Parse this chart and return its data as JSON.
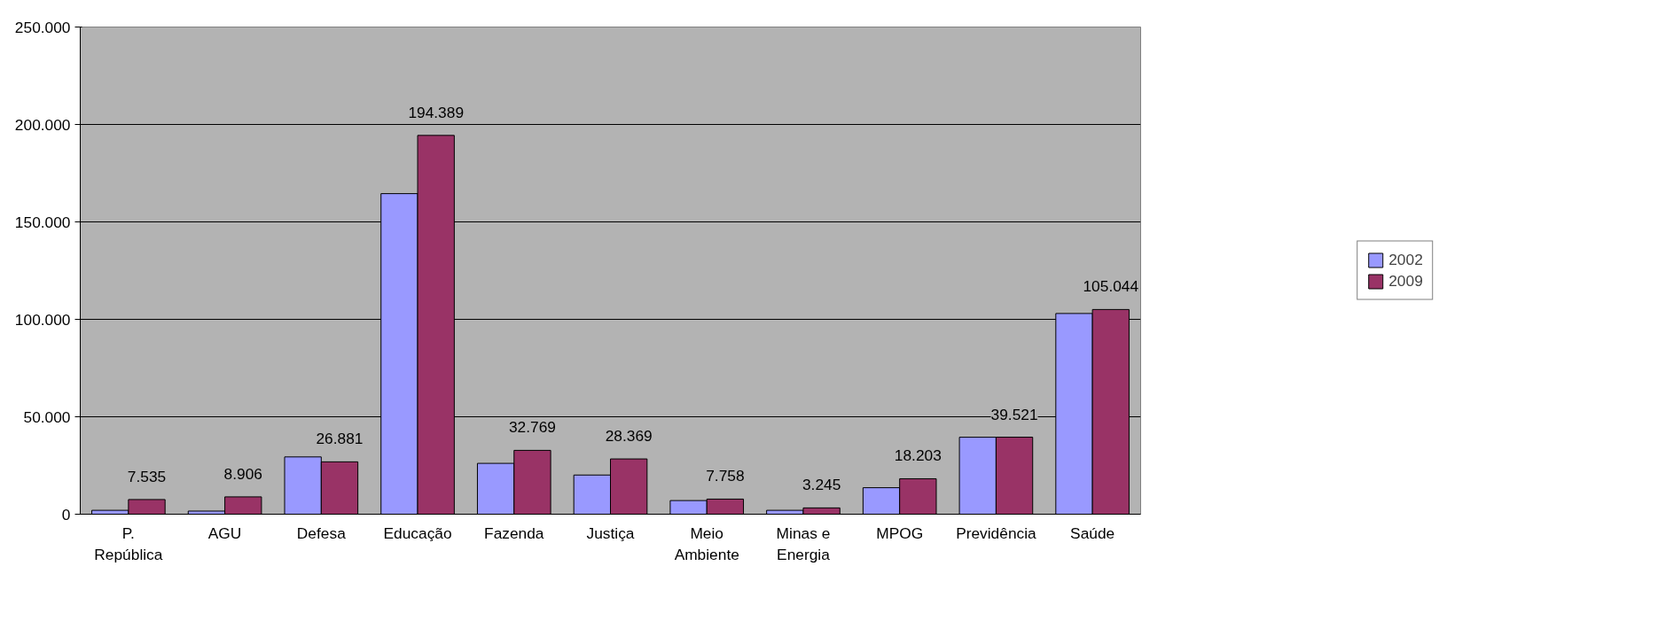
{
  "chart_data": {
    "type": "bar",
    "categories": [
      "P. República",
      "AGU",
      "Defesa",
      "Educação",
      "Fazenda",
      "Justiça",
      "Meio Ambiente",
      "Minas e Energia",
      "MPOG",
      "Previdência",
      "Saúde"
    ],
    "series": [
      {
        "name": "2002",
        "color": "#9999ff",
        "values": [
          2000,
          1600,
          29400,
          164500,
          26100,
          20100,
          7000,
          2000,
          13600,
          39500,
          103000
        ]
      },
      {
        "name": "2009",
        "color": "#993366",
        "values": [
          7535,
          8906,
          26881,
          194389,
          32769,
          28369,
          7758,
          3245,
          18203,
          39521,
          105044
        ],
        "value_labels": [
          "7.535",
          "8.906",
          "26.881",
          "194.389",
          "32.769",
          "28.369",
          "7.758",
          "3.245",
          "18.203",
          "39.521",
          "105.044"
        ]
      }
    ],
    "ylim": [
      0,
      250000
    ],
    "yticks": [
      {
        "value": 0,
        "label": "0"
      },
      {
        "value": 50000,
        "label": "50.000"
      },
      {
        "value": 100000,
        "label": "100.000"
      },
      {
        "value": 150000,
        "label": "150.000"
      },
      {
        "value": 200000,
        "label": "200.000"
      },
      {
        "value": 250000,
        "label": "250.000"
      }
    ],
    "grid": "y",
    "legend": "right"
  }
}
